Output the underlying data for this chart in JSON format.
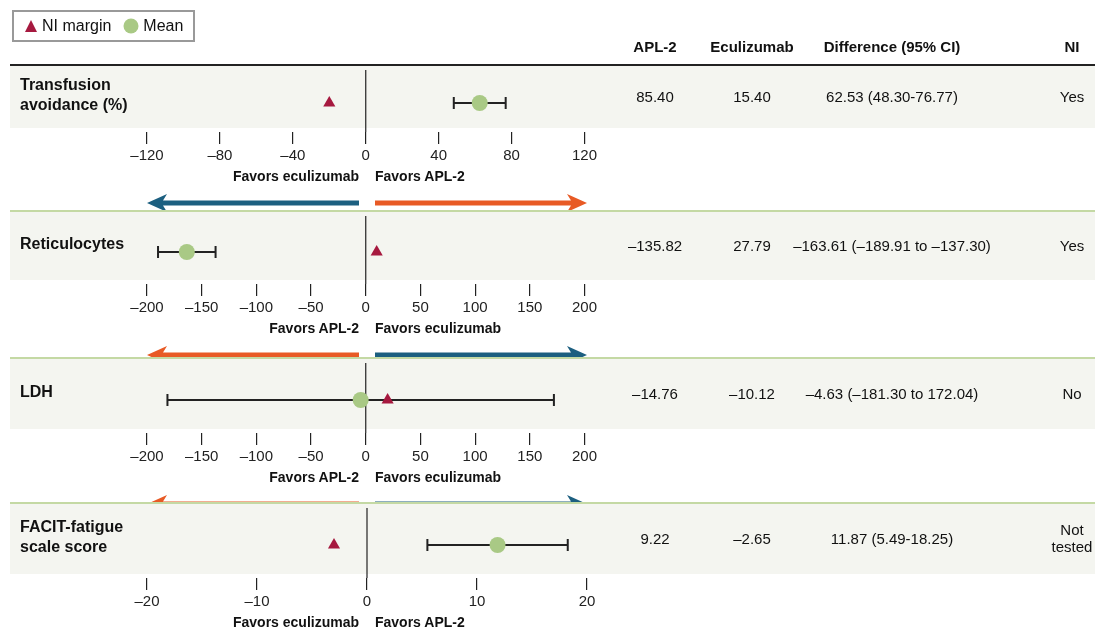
{
  "chart_data": [
    {
      "type": "scatter",
      "orientation": "horizontal",
      "categories": [
        "Transfusion avoidance (%)"
      ],
      "legend": "top left",
      "grid": false,
      "series": [
        {
          "name": "NI margin",
          "color": "#a6193f",
          "marker": "triangle",
          "values": [
            -20
          ]
        },
        {
          "name": "Mean",
          "color": "#a9c985",
          "marker": "circle",
          "values": [
            62.53
          ],
          "errors": [
            [
              48.3,
              76.77
            ]
          ]
        }
      ],
      "xlim": [
        -120,
        120
      ],
      "xticks": [
        {
          "value": -120,
          "label": "–120"
        },
        {
          "value": -80,
          "label": "–80"
        },
        {
          "value": -40,
          "label": "–40"
        },
        0,
        40,
        80,
        120
      ],
      "ref_lines": [
        {
          "axis": "x",
          "value": 0,
          "color": "#222222"
        }
      ],
      "annotations": [
        "APL-2",
        "Eculizumab",
        "Difference (95% CI)",
        "NI",
        "85.40",
        "15.40",
        "62.53 (48.30-76.77)",
        "Yes",
        "Favors eculizumab",
        "Favors APL-2"
      ]
    },
    {
      "type": "scatter",
      "orientation": "horizontal",
      "categories": [
        "Reticulocytes"
      ],
      "grid": false,
      "series": [
        {
          "color": "#a6193f",
          "marker": "triangle",
          "values": [
            10
          ]
        },
        {
          "color": "#a9c985",
          "marker": "circle",
          "values": [
            -163.61
          ],
          "errors": [
            [
              -189.91,
              -137.3
            ]
          ]
        }
      ],
      "xlim": [
        -200,
        200
      ],
      "xticks": [
        {
          "value": -200,
          "label": "–200"
        },
        {
          "value": -150,
          "label": "–150"
        },
        {
          "value": -100,
          "label": "–100"
        },
        {
          "value": -50,
          "label": "–50"
        },
        0,
        50,
        100,
        150,
        200
      ],
      "ref_lines": [
        {
          "axis": "x",
          "value": 0,
          "color": "#222222"
        }
      ],
      "annotations": [
        "–135.82",
        "27.79",
        "–163.61 (–189.91 to –137.30)",
        "Yes",
        "Favors APL-2",
        "Favors eculizumab"
      ]
    },
    {
      "type": "scatter",
      "orientation": "horizontal",
      "categories": [
        "LDH"
      ],
      "grid": false,
      "series": [
        {
          "color": "#a6193f",
          "marker": "triangle",
          "values": [
            20
          ]
        },
        {
          "color": "#a9c985",
          "marker": "circle",
          "values": [
            -4.63
          ],
          "errors": [
            [
              -181.3,
              172.04
            ]
          ]
        }
      ],
      "xlim": [
        -200,
        200
      ],
      "xticks": [
        {
          "value": -200,
          "label": "–200"
        },
        {
          "value": -150,
          "label": "–150"
        },
        {
          "value": -100,
          "label": "–100"
        },
        {
          "value": -50,
          "label": "–50"
        },
        0,
        50,
        100,
        150,
        200
      ],
      "ref_lines": [
        {
          "axis": "x",
          "value": 0,
          "color": "#222222"
        }
      ],
      "annotations": [
        "–14.76",
        "–10.12",
        "–4.63 (–181.30 to 172.04)",
        "No",
        "Favors APL-2",
        "Favors eculizumab"
      ]
    },
    {
      "type": "scatter",
      "orientation": "horizontal",
      "categories": [
        "FACIT-fatigue scale score"
      ],
      "grid": false,
      "series": [
        {
          "color": "#a6193f",
          "marker": "triangle",
          "values": [
            -3
          ]
        },
        {
          "color": "#a9c985",
          "marker": "circle",
          "values": [
            11.87
          ],
          "errors": [
            [
              5.49,
              18.25
            ]
          ]
        }
      ],
      "xlim": [
        -20,
        20
      ],
      "xticks": [
        {
          "value": -20,
          "label": "–20"
        },
        {
          "value": -10,
          "label": "–10"
        },
        0,
        10,
        20
      ],
      "ref_lines": [
        {
          "axis": "x",
          "value": 0,
          "color": "#222222"
        }
      ],
      "annotations": [
        "9.22",
        "–2.65",
        "11.87 (5.49-18.25)",
        "Not tested",
        "Favors eculizumab",
        "Favors APL-2"
      ]
    }
  ]
}
